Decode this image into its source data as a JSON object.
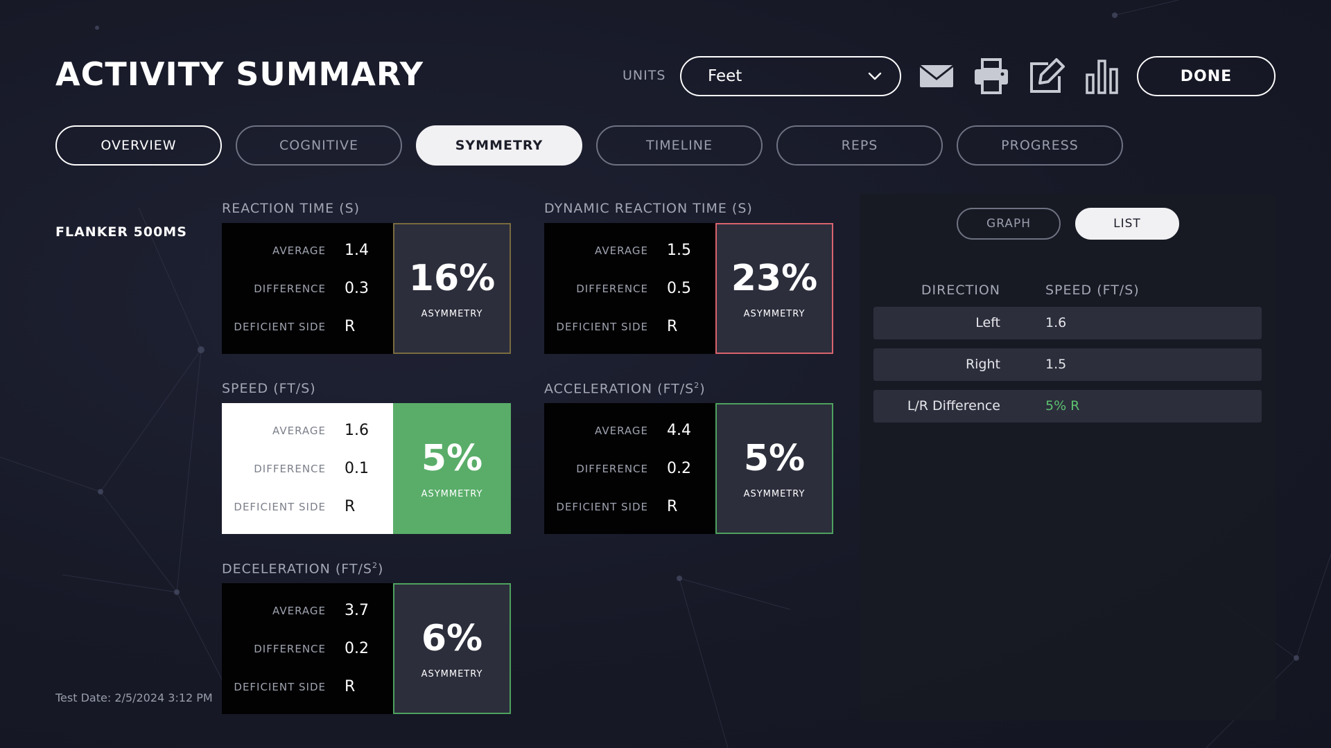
{
  "header": {
    "title": "ACTIVITY SUMMARY",
    "units_label": "UNITS",
    "units_value": "Feet",
    "done_label": "DONE",
    "icons": [
      "envelope-icon",
      "printer-icon",
      "edit-icon",
      "bar-chart-icon"
    ]
  },
  "tabs": [
    {
      "label": "OVERVIEW"
    },
    {
      "label": "COGNITIVE"
    },
    {
      "label": "SYMMETRY",
      "active": true
    },
    {
      "label": "TIMELINE"
    },
    {
      "label": "REPS"
    },
    {
      "label": "PROGRESS"
    }
  ],
  "test": {
    "name": "FLANKER 500MS",
    "date": "Test Date: 2/5/2024 3:12 PM"
  },
  "metric_labels": {
    "average": "AVERAGE",
    "difference": "DIFFERENCE",
    "deficient_side": "DEFICIENT SIDE",
    "asymmetry": "ASYMMETRY"
  },
  "metrics": [
    {
      "title": "REACTION TIME (S)",
      "average": "1.4",
      "difference": "0.3",
      "deficient_side": "R",
      "asymmetry": "16%",
      "status_color": "#7a6b3f"
    },
    {
      "title": "DYNAMIC REACTION TIME (S)",
      "average": "1.5",
      "difference": "0.5",
      "deficient_side": "R",
      "asymmetry": "23%",
      "status_color": "#d9646d"
    },
    {
      "title": "SPEED (FT/S)",
      "average": "1.6",
      "difference": "0.1",
      "deficient_side": "R",
      "asymmetry": "5%",
      "status_color": "#59ad69"
    },
    {
      "title": "ACCELERATION (FT/S",
      "title_sup": "2",
      "title_suffix": ")",
      "average": "4.4",
      "difference": "0.2",
      "deficient_side": "R",
      "asymmetry": "5%",
      "status_color": "#4ea25e"
    },
    {
      "title": "DECELERATION (FT/S",
      "title_sup": "2",
      "title_suffix": ")",
      "average": "3.7",
      "difference": "0.2",
      "deficient_side": "R",
      "asymmetry": "6%",
      "status_color": "#4ea25e"
    }
  ],
  "panel": {
    "graph_label": "GRAPH",
    "list_label": "LIST",
    "col_direction": "DIRECTION",
    "col_speed": "SPEED (FT/S)",
    "rows": [
      {
        "direction": "Left",
        "speed": "1.6"
      },
      {
        "direction": "Right",
        "speed": "1.5"
      },
      {
        "direction": "L/R Difference",
        "speed": "5% R"
      }
    ]
  }
}
